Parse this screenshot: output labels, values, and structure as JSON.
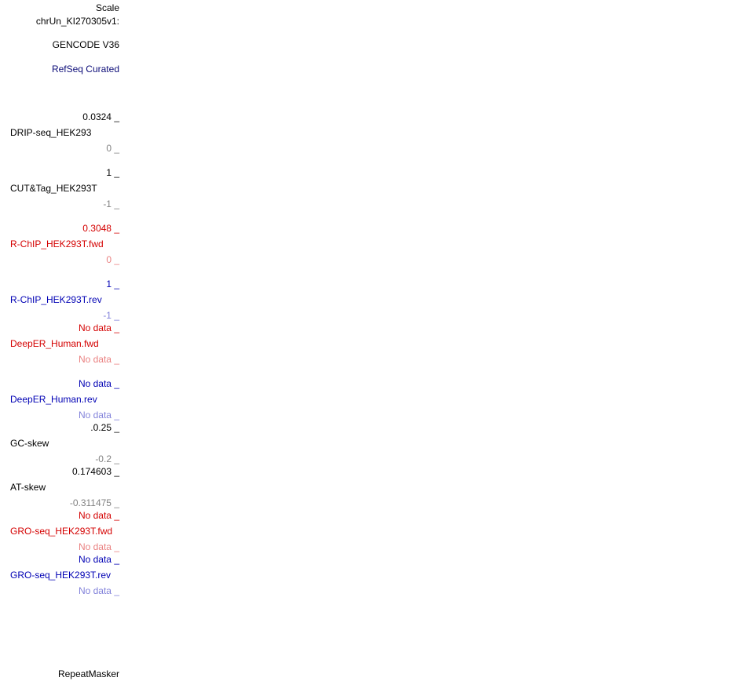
{
  "header": {
    "scale": "Scale",
    "chrom": "chrUn_KI270305v1:"
  },
  "annotation_tracks": [
    "GENCODE V36",
    "RefSeq Curated"
  ],
  "signal_tracks": [
    {
      "top": "0.0324 _",
      "name": "DRIP-seq_HEK293",
      "bottom": "0 _",
      "color": "#000000"
    },
    {
      "top": "1 _",
      "name": "CUT&Tag_HEK293T",
      "bottom": "-1 _",
      "color": "#000000"
    },
    {
      "top": "0.3048 _",
      "name": "R-ChIP_HEK293T.fwd",
      "bottom": "0 _",
      "color": "#d40000"
    },
    {
      "top": "1 _",
      "name": "R-ChIP_HEK293T.rev",
      "bottom": "-1 _",
      "color": "#0000b4"
    },
    {
      "top": "No data _",
      "name": "DeepER_Human.fwd",
      "bottom": "No data _",
      "color": "#d40000"
    },
    {
      "top": "No data _",
      "name": "DeepER_Human.rev",
      "bottom": "No data _",
      "color": "#0000b4"
    },
    {
      "top": ".0.25 _",
      "name": "GC-skew",
      "bottom": "-0.2 _",
      "color": "#000000"
    },
    {
      "top": "0.174603 _",
      "name": "AT-skew",
      "bottom": "-0.311475 _",
      "color": "#000000"
    },
    {
      "top": "No data _",
      "name": "GRO-seq_HEK293T.fwd",
      "bottom": "No data _",
      "color": "#d40000"
    },
    {
      "top": "No data _",
      "name": "GRO-seq_HEK293T.rev",
      "bottom": "No data _",
      "color": "#0000b4"
    }
  ],
  "footer_track": "RepeatMasker"
}
